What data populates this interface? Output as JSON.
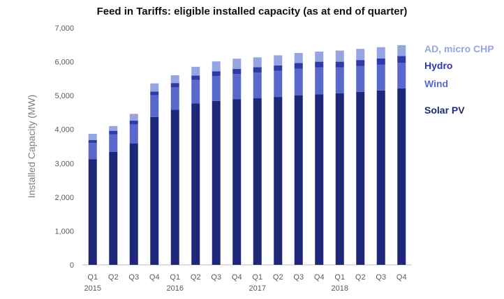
{
  "chart_data": {
    "type": "bar",
    "stacked": true,
    "title": "Feed in Tariffs: eligible installed capacity (as at end of quarter)",
    "xlabel": "",
    "ylabel": "Installed Capacity (MW)",
    "ylim": [
      0,
      7000
    ],
    "yticks": [
      0,
      1000,
      2000,
      3000,
      4000,
      5000,
      6000,
      7000
    ],
    "ytick_labels": [
      "0",
      "1,000",
      "2,000",
      "3,000",
      "4,000",
      "5,000",
      "6,000",
      "7,000"
    ],
    "grid": false,
    "legend_position": "right",
    "categories": [
      "Q1",
      "Q2",
      "Q3",
      "Q4",
      "Q1",
      "Q2",
      "Q3",
      "Q4",
      "Q1",
      "Q2",
      "Q3",
      "Q4",
      "Q1",
      "Q2",
      "Q3",
      "Q4"
    ],
    "year_labels": [
      {
        "index": 0,
        "label": "2015"
      },
      {
        "index": 4,
        "label": "2016"
      },
      {
        "index": 8,
        "label": "2017"
      },
      {
        "index": 12,
        "label": "2018"
      }
    ],
    "series": [
      {
        "name": "Solar PV",
        "color": "#1f2878",
        "values": [
          3120,
          3340,
          3590,
          4370,
          4580,
          4770,
          4840,
          4890,
          4920,
          4960,
          5010,
          5040,
          5070,
          5110,
          5150,
          5210
        ]
      },
      {
        "name": "Wind",
        "color": "#5868cc",
        "values": [
          480,
          520,
          560,
          640,
          670,
          690,
          740,
          750,
          760,
          770,
          780,
          790,
          760,
          760,
          760,
          760
        ]
      },
      {
        "name": "Hydro",
        "color": "#2e3aa8",
        "values": [
          90,
          100,
          110,
          110,
          120,
          130,
          140,
          150,
          160,
          160,
          170,
          170,
          170,
          180,
          190,
          200
        ]
      },
      {
        "name": "AD, micro CHP",
        "color": "#97a4e2",
        "values": [
          180,
          140,
          200,
          240,
          230,
          260,
          290,
          300,
          290,
          300,
          300,
          300,
          330,
          330,
          330,
          320
        ]
      }
    ]
  }
}
